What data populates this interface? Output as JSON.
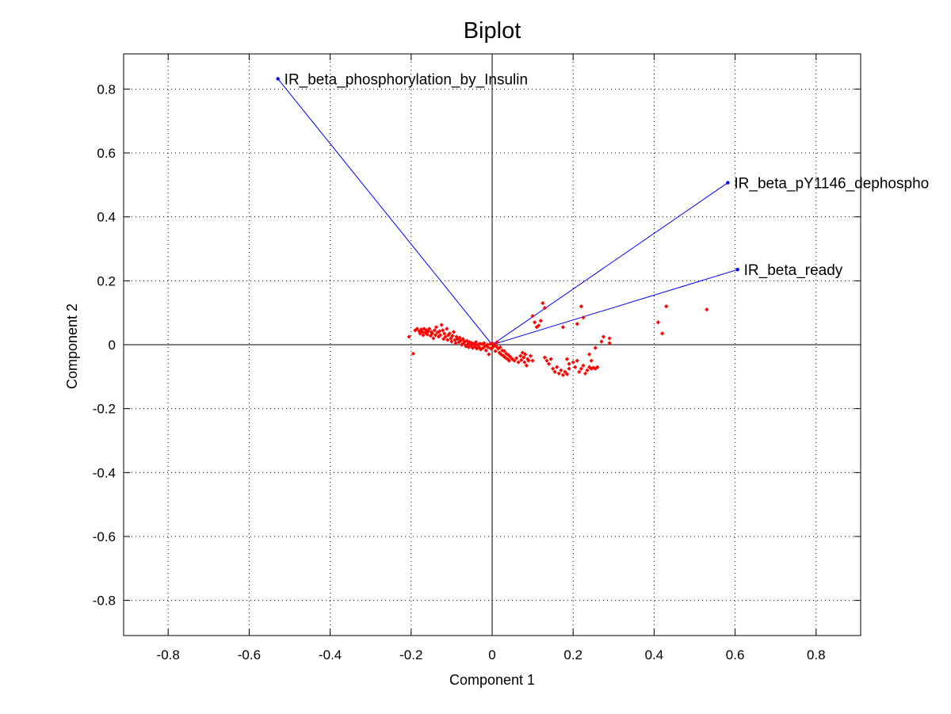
{
  "chart_data": {
    "type": "scatter",
    "title": "Biplot",
    "xlabel": "Component 1",
    "ylabel": "Component 2",
    "xlim": [
      -0.91,
      0.91
    ],
    "ylim": [
      -0.91,
      0.91
    ],
    "xticks": [
      -0.8,
      -0.6,
      -0.4,
      -0.2,
      0,
      0.2,
      0.4,
      0.6,
      0.8
    ],
    "yticks": [
      -0.8,
      -0.6,
      -0.4,
      -0.2,
      0,
      0.2,
      0.4,
      0.6,
      0.8
    ],
    "xtick_labels": [
      "-0.8",
      "-0.6",
      "-0.4",
      "-0.2",
      "0",
      "0.2",
      "0.4",
      "0.6",
      "0.8"
    ],
    "ytick_labels": [
      "-0.8",
      "-0.6",
      "-0.4",
      "-0.2",
      "0",
      "0.2",
      "0.4",
      "0.6",
      "0.8"
    ],
    "grid": true,
    "colors": {
      "vectors": "#0000ff",
      "points": "#ff0000",
      "axes": "#000000"
    },
    "vectors": [
      {
        "name": "IR_beta_phosphorylation_by_Insulin",
        "x": -0.529,
        "y": 0.832
      },
      {
        "name": "IR_beta_pY1146_dephospho",
        "x": 0.582,
        "y": 0.507
      },
      {
        "name": "IR_beta_ready",
        "x": 0.606,
        "y": 0.235
      }
    ],
    "points": [
      [
        -0.205,
        0.025
      ],
      [
        -0.195,
        -0.028
      ],
      [
        -0.19,
        0.045
      ],
      [
        -0.185,
        0.05
      ],
      [
        -0.18,
        0.042
      ],
      [
        -0.178,
        0.035
      ],
      [
        -0.175,
        0.048
      ],
      [
        -0.172,
        0.04
      ],
      [
        -0.17,
        0.03
      ],
      [
        -0.168,
        0.05
      ],
      [
        -0.165,
        0.038
      ],
      [
        -0.162,
        0.045
      ],
      [
        -0.16,
        0.032
      ],
      [
        -0.158,
        0.042
      ],
      [
        -0.155,
        0.05
      ],
      [
        -0.152,
        0.028
      ],
      [
        -0.15,
        0.04
      ],
      [
        -0.148,
        0.035
      ],
      [
        -0.145,
        0.02
      ],
      [
        -0.142,
        0.045
      ],
      [
        -0.14,
        0.03
      ],
      [
        -0.138,
        0.055
      ],
      [
        -0.135,
        0.038
      ],
      [
        -0.132,
        0.025
      ],
      [
        -0.13,
        0.042
      ],
      [
        -0.128,
        0.03
      ],
      [
        -0.125,
        0.062
      ],
      [
        -0.122,
        0.045
      ],
      [
        -0.12,
        0.018
      ],
      [
        -0.118,
        0.035
      ],
      [
        -0.115,
        0.025
      ],
      [
        -0.112,
        0.05
      ],
      [
        -0.11,
        0.015
      ],
      [
        -0.108,
        0.03
      ],
      [
        -0.105,
        0.035
      ],
      [
        -0.102,
        0.02
      ],
      [
        -0.1,
        0.01
      ],
      [
        -0.098,
        0.028
      ],
      [
        -0.095,
        0.04
      ],
      [
        -0.092,
        0.015
      ],
      [
        -0.09,
        0.005
      ],
      [
        -0.088,
        0.025
      ],
      [
        -0.085,
        0.018
      ],
      [
        -0.082,
        0.008
      ],
      [
        -0.08,
        0.022
      ],
      [
        -0.078,
        0.012
      ],
      [
        -0.075,
        0.0
      ],
      [
        -0.072,
        0.018
      ],
      [
        -0.07,
        0.005
      ],
      [
        -0.068,
        0.01
      ],
      [
        -0.065,
        -0.005
      ],
      [
        -0.062,
        0.012
      ],
      [
        -0.06,
        0.002
      ],
      [
        -0.058,
        -0.008
      ],
      [
        -0.055,
        0.008
      ],
      [
        -0.052,
        -0.002
      ],
      [
        -0.05,
        0.005
      ],
      [
        -0.048,
        -0.01
      ],
      [
        -0.045,
        0.002
      ],
      [
        -0.042,
        -0.005
      ],
      [
        -0.04,
        0.008
      ],
      [
        -0.038,
        -0.012
      ],
      [
        -0.035,
        0.0
      ],
      [
        -0.032,
        -0.008
      ],
      [
        -0.03,
        0.003
      ],
      [
        -0.028,
        -0.015
      ],
      [
        -0.025,
        0.002
      ],
      [
        -0.022,
        -0.01
      ],
      [
        -0.02,
        0.005
      ],
      [
        -0.018,
        -0.005
      ],
      [
        -0.015,
        -0.018
      ],
      [
        -0.012,
        0.0
      ],
      [
        -0.01,
        -0.008
      ],
      [
        -0.008,
        -0.03
      ],
      [
        -0.005,
        0.002
      ],
      [
        -0.003,
        -0.012
      ],
      [
        0.0,
        0.005
      ],
      [
        0.002,
        -0.008
      ],
      [
        0.005,
        0.0
      ],
      [
        0.008,
        -0.02
      ],
      [
        0.01,
        -0.005
      ],
      [
        0.012,
        0.008
      ],
      [
        0.015,
        -0.012
      ],
      [
        0.018,
        -0.025
      ],
      [
        0.02,
        -0.008
      ],
      [
        0.022,
        -0.03
      ],
      [
        0.025,
        -0.018
      ],
      [
        0.028,
        -0.035
      ],
      [
        0.03,
        -0.02
      ],
      [
        0.032,
        -0.04
      ],
      [
        0.035,
        -0.028
      ],
      [
        0.038,
        -0.045
      ],
      [
        0.04,
        -0.032
      ],
      [
        0.042,
        -0.05
      ],
      [
        0.045,
        -0.038
      ],
      [
        0.05,
        -0.045
      ],
      [
        0.055,
        -0.05
      ],
      [
        0.06,
        -0.042
      ],
      [
        0.065,
        -0.055
      ],
      [
        0.07,
        -0.035
      ],
      [
        0.072,
        -0.048
      ],
      [
        0.075,
        -0.025
      ],
      [
        0.078,
        -0.04
      ],
      [
        0.08,
        -0.055
      ],
      [
        0.082,
        -0.03
      ],
      [
        0.085,
        -0.065
      ],
      [
        0.088,
        -0.045
      ],
      [
        0.09,
        -0.05
      ],
      [
        0.095,
        -0.035
      ],
      [
        0.1,
        -0.05
      ],
      [
        0.1,
        0.09
      ],
      [
        0.105,
        0.07
      ],
      [
        0.11,
        0.055
      ],
      [
        0.115,
        0.06
      ],
      [
        0.12,
        0.075
      ],
      [
        0.125,
        0.13
      ],
      [
        0.13,
        0.115
      ],
      [
        0.13,
        -0.04
      ],
      [
        0.135,
        -0.05
      ],
      [
        0.14,
        -0.06
      ],
      [
        0.145,
        -0.045
      ],
      [
        0.15,
        -0.075
      ],
      [
        0.155,
        -0.085
      ],
      [
        0.16,
        -0.07
      ],
      [
        0.165,
        -0.09
      ],
      [
        0.17,
        -0.08
      ],
      [
        0.175,
        -0.095
      ],
      [
        0.18,
        -0.085
      ],
      [
        0.185,
        -0.092
      ],
      [
        0.19,
        -0.075
      ],
      [
        0.175,
        0.055
      ],
      [
        0.185,
        -0.045
      ],
      [
        0.19,
        -0.06
      ],
      [
        0.2,
        -0.055
      ],
      [
        0.205,
        -0.07
      ],
      [
        0.21,
        -0.05
      ],
      [
        0.215,
        -0.085
      ],
      [
        0.22,
        -0.075
      ],
      [
        0.225,
        -0.065
      ],
      [
        0.23,
        -0.09
      ],
      [
        0.235,
        -0.08
      ],
      [
        0.24,
        -0.07
      ],
      [
        0.245,
        -0.075
      ],
      [
        0.25,
        -0.072
      ],
      [
        0.255,
        -0.075
      ],
      [
        0.26,
        -0.07
      ],
      [
        0.24,
        -0.03
      ],
      [
        0.255,
        -0.01
      ],
      [
        0.27,
        0.01
      ],
      [
        0.275,
        0.025
      ],
      [
        0.22,
        0.12
      ],
      [
        0.225,
        0.085
      ],
      [
        0.21,
        0.065
      ],
      [
        0.29,
        0.02
      ],
      [
        0.29,
        0.005
      ],
      [
        0.41,
        0.07
      ],
      [
        0.42,
        0.035
      ],
      [
        0.43,
        0.12
      ],
      [
        0.53,
        0.11
      ],
      [
        0.245,
        -0.05
      ]
    ]
  }
}
